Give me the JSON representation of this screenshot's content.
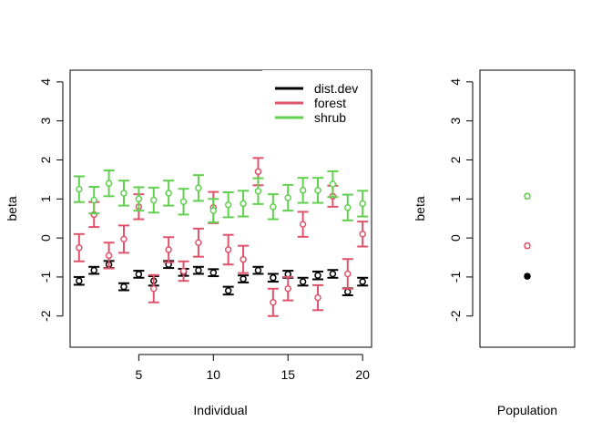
{
  "colors": {
    "dist.dev": "#000000",
    "forest": "#DF536B",
    "shrub": "#61D04F",
    "frame": "#000000",
    "background": "#FFFFFF"
  },
  "chart_data": [
    {
      "type": "scatter",
      "subtype": "point-with-error-bars",
      "xlabel": "Individual",
      "ylabel": "beta",
      "xlim": [
        0.4,
        20.6
      ],
      "ylim": [
        -2.8,
        4.3
      ],
      "x_ticks": [
        5,
        10,
        15,
        20
      ],
      "y_ticks": [
        -2,
        -1,
        0,
        1,
        2,
        3,
        4
      ],
      "grid": false,
      "legend": {
        "position": "top-right",
        "entries": [
          "dist.dev",
          "forest",
          "shrub"
        ]
      },
      "x": [
        1,
        2,
        3,
        4,
        5,
        6,
        7,
        8,
        9,
        10,
        11,
        12,
        13,
        14,
        15,
        16,
        17,
        18,
        19,
        20
      ],
      "series": [
        {
          "name": "dist.dev",
          "color": "#000000",
          "values": [
            -1.1,
            -0.83,
            -0.68,
            -1.25,
            -0.93,
            -1.1,
            -0.68,
            -0.88,
            -0.83,
            -0.89,
            -1.35,
            -1.05,
            -0.83,
            -1.02,
            -0.93,
            -1.12,
            -0.96,
            -0.92,
            -1.38,
            -1.12
          ],
          "lower": [
            -1.2,
            -0.92,
            -0.77,
            -1.34,
            -1.02,
            -1.22,
            -0.77,
            -0.97,
            -0.92,
            -0.98,
            -1.45,
            -1.14,
            -0.92,
            -1.12,
            -1.02,
            -1.22,
            -1.06,
            -1.02,
            -1.47,
            -1.22
          ],
          "upper": [
            -1.0,
            -0.74,
            -0.59,
            -1.16,
            -0.84,
            -0.98,
            -0.59,
            -0.79,
            -0.74,
            -0.8,
            -1.25,
            -0.96,
            -0.74,
            -0.92,
            -0.84,
            -1.02,
            -0.86,
            -0.82,
            -1.29,
            -1.02
          ]
        },
        {
          "name": "forest",
          "color": "#DF536B",
          "values": [
            -0.25,
            0.6,
            -0.45,
            -0.03,
            0.8,
            -1.3,
            -0.3,
            -0.85,
            -0.12,
            0.78,
            -0.3,
            -0.55,
            1.7,
            -1.65,
            -1.3,
            0.35,
            -1.53,
            1.07,
            -0.92,
            0.1
          ],
          "lower": [
            -0.6,
            0.28,
            -0.78,
            -0.38,
            0.48,
            -1.65,
            -0.62,
            -1.1,
            -0.48,
            0.38,
            -0.68,
            -0.9,
            1.35,
            -2.0,
            -1.6,
            0.03,
            -1.85,
            0.8,
            -1.3,
            -0.22
          ],
          "upper": [
            0.1,
            0.92,
            -0.12,
            0.32,
            1.12,
            -0.95,
            0.02,
            -0.6,
            0.24,
            1.18,
            0.08,
            -0.2,
            2.05,
            -1.3,
            -1.0,
            0.67,
            -1.21,
            1.34,
            -0.54,
            0.42
          ]
        },
        {
          "name": "shrub",
          "color": "#61D04F",
          "values": [
            1.25,
            0.97,
            1.4,
            1.15,
            1.0,
            0.97,
            1.15,
            0.93,
            1.28,
            0.7,
            0.85,
            0.88,
            1.2,
            0.8,
            1.03,
            1.22,
            1.22,
            1.38,
            0.78,
            0.88
          ],
          "lower": [
            0.92,
            0.63,
            1.07,
            0.83,
            0.7,
            0.65,
            0.83,
            0.6,
            0.95,
            0.4,
            0.53,
            0.55,
            0.87,
            0.48,
            0.7,
            0.9,
            0.9,
            1.05,
            0.45,
            0.55
          ],
          "upper": [
            1.58,
            1.31,
            1.73,
            1.47,
            1.3,
            1.29,
            1.47,
            1.26,
            1.61,
            1.0,
            1.17,
            1.21,
            1.53,
            1.12,
            1.36,
            1.54,
            1.54,
            1.71,
            1.11,
            1.21
          ]
        }
      ]
    },
    {
      "type": "scatter",
      "subtype": "point-with-error-bars",
      "xlabel": "Population",
      "ylabel": "beta",
      "ylim": [
        -2.8,
        4.3
      ],
      "y_ticks": [
        -2,
        -1,
        0,
        1,
        2,
        3,
        4
      ],
      "grid": false,
      "series": [
        {
          "name": "dist.dev",
          "color": "#000000",
          "values": [
            -0.98
          ],
          "lower": [
            -1.02
          ],
          "upper": [
            -0.94
          ]
        },
        {
          "name": "forest",
          "color": "#DF536B",
          "values": [
            -0.2
          ],
          "lower": [
            -0.25
          ],
          "upper": [
            -0.15
          ]
        },
        {
          "name": "shrub",
          "color": "#61D04F",
          "values": [
            1.07
          ],
          "lower": [
            1.02
          ],
          "upper": [
            1.12
          ]
        }
      ]
    }
  ]
}
